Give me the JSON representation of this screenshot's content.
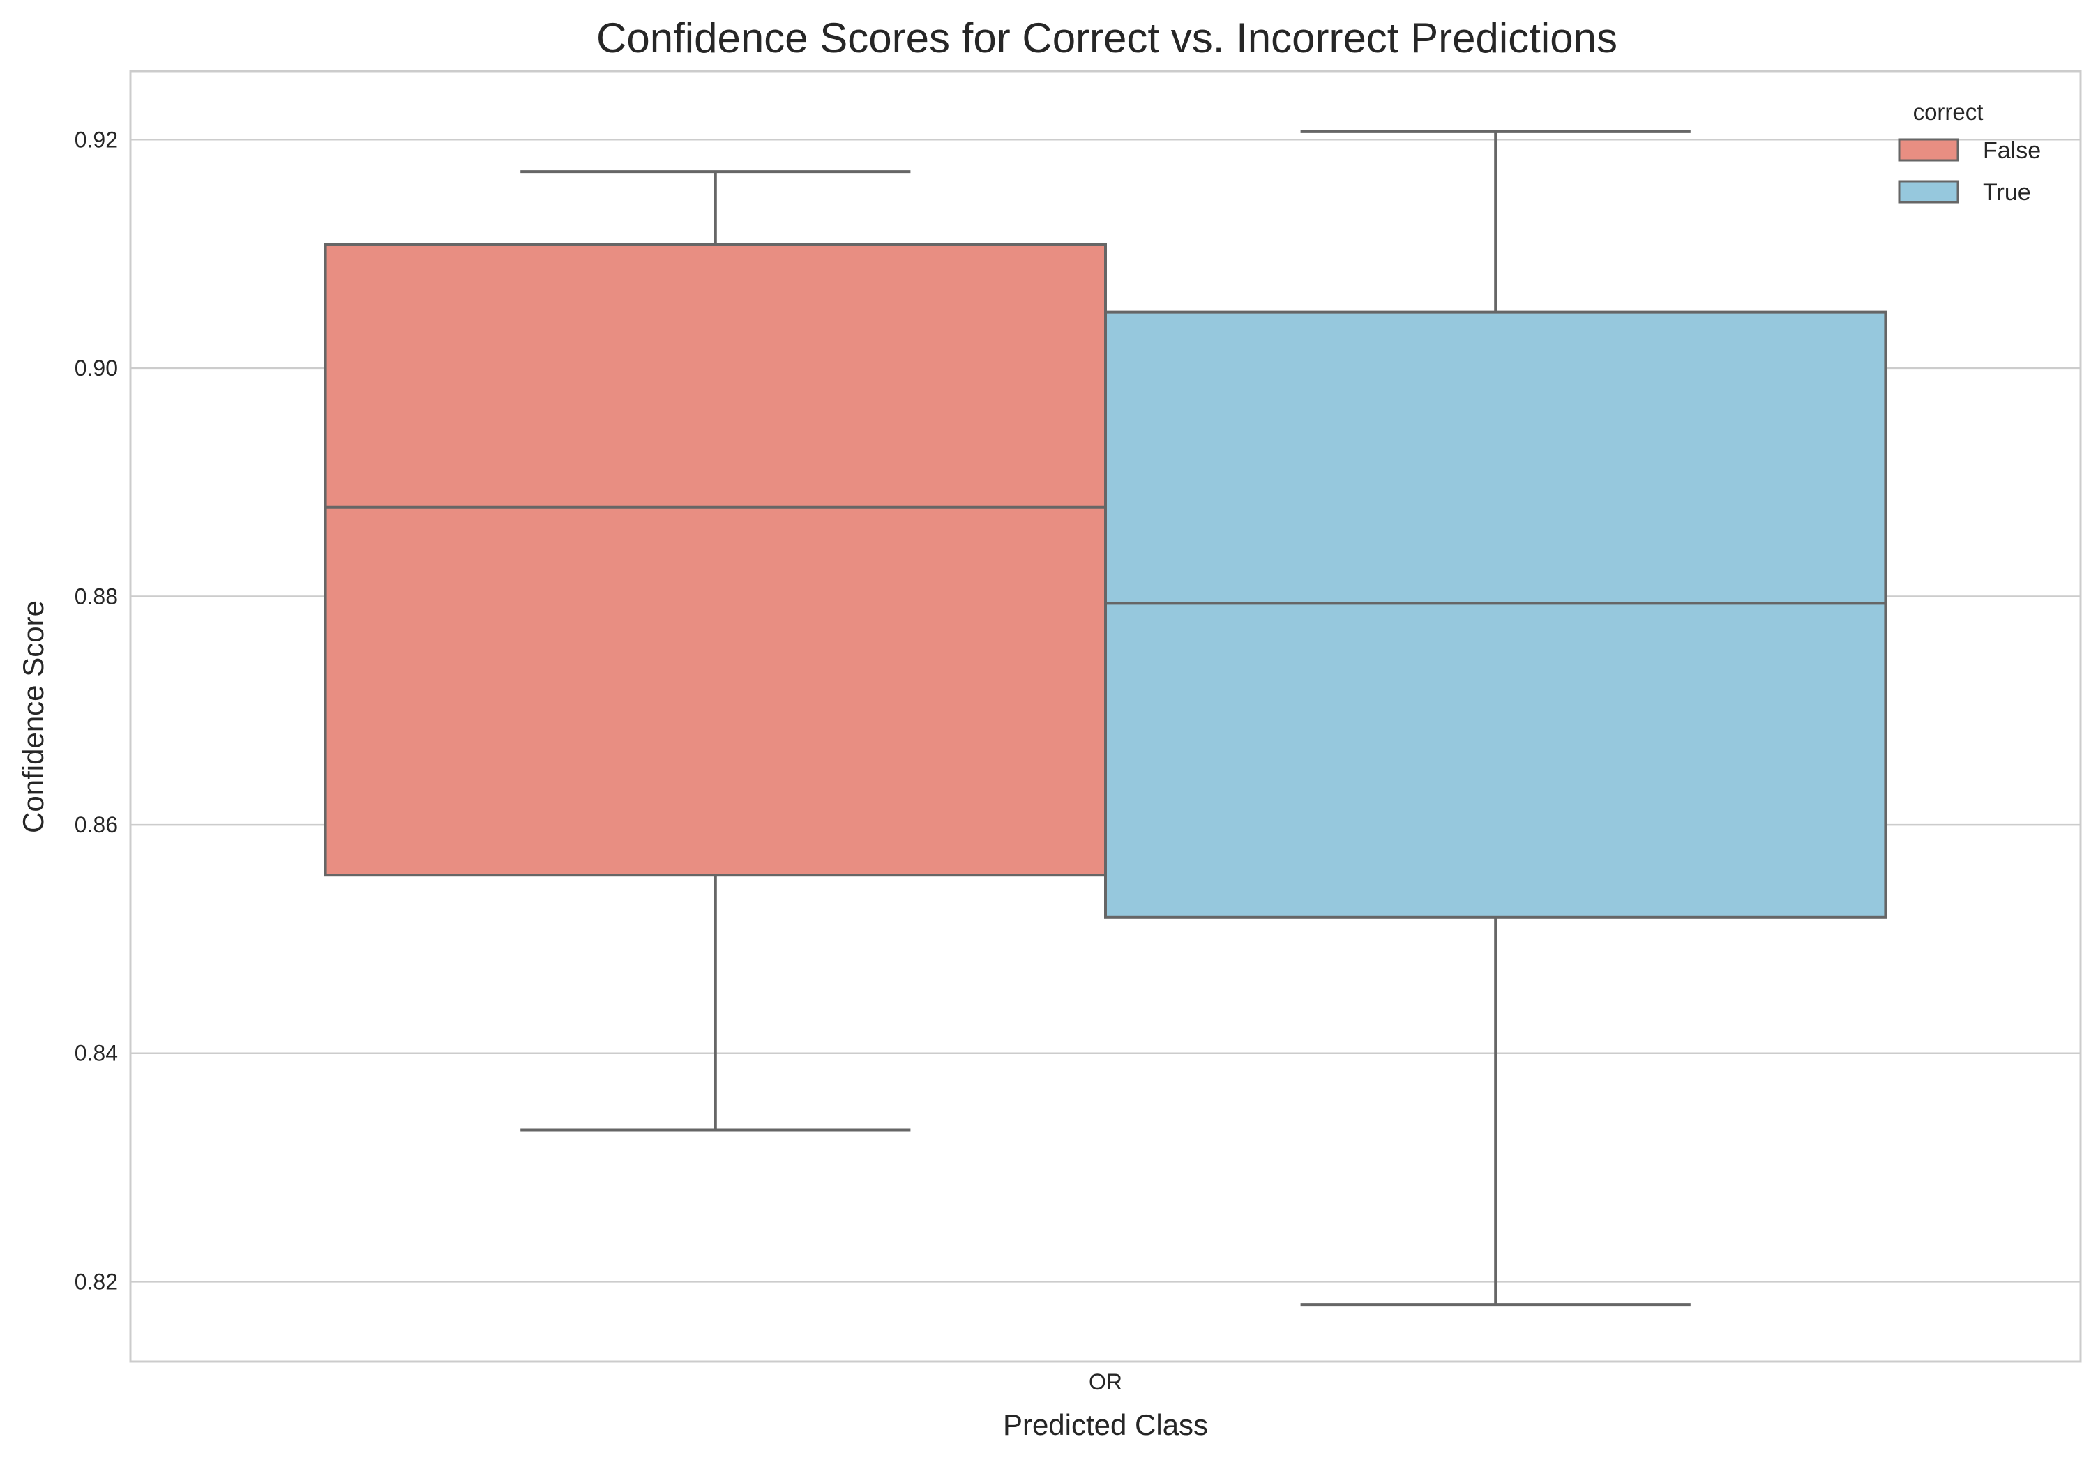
{
  "chart_data": {
    "type": "box",
    "title": "Confidence Scores for Correct vs. Incorrect Predictions",
    "xlabel": "Predicted Class",
    "ylabel": "Confidence Score",
    "categories": [
      "OR"
    ],
    "ylim": [
      0.813,
      0.926
    ],
    "yticks": [
      0.82,
      0.84,
      0.86,
      0.88,
      0.9,
      0.92
    ],
    "ytick_labels": [
      "0.82",
      "0.84",
      "0.86",
      "0.88",
      "0.90",
      "0.92"
    ],
    "grid": true,
    "legend": {
      "title": "correct",
      "placement": "top-right"
    },
    "series": [
      {
        "name": "False",
        "color": "#e88e82",
        "whisker_low": 0.8333,
        "q1": 0.8556,
        "median": 0.8878,
        "q3": 0.9108,
        "whisker_high": 0.9172
      },
      {
        "name": "True",
        "color": "#96c8dd",
        "whisker_low": 0.818,
        "q1": 0.8519,
        "median": 0.8794,
        "q3": 0.9049,
        "whisker_high": 0.9207
      }
    ]
  }
}
